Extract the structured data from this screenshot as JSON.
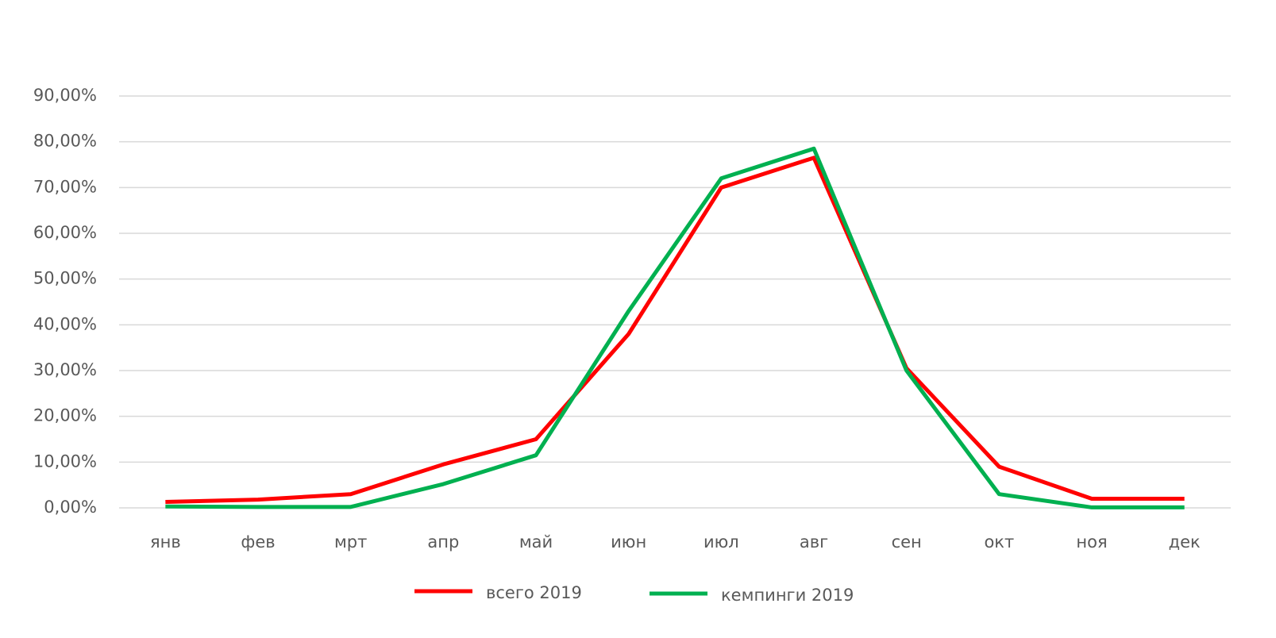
{
  "chart_data": {
    "type": "line",
    "categories": [
      "янв",
      "фев",
      "мрт",
      "апр",
      "май",
      "июн",
      "июл",
      "авг",
      "сен",
      "окт",
      "ноя",
      "дек"
    ],
    "series": [
      {
        "name": "всего 2019",
        "color": "#ff0000",
        "values": [
          1.3,
          1.8,
          3,
          9.5,
          15,
          38,
          70,
          76.5,
          30.5,
          9,
          2,
          2
        ]
      },
      {
        "name": "кемпинги 2019",
        "color": "#00b050",
        "values": [
          0.3,
          0.2,
          0.2,
          5.2,
          11.5,
          43,
          72,
          78.5,
          30,
          3,
          0.1,
          0.1
        ]
      }
    ],
    "ylim": [
      0,
      90
    ],
    "yticks": [
      {
        "value": 0,
        "label": "0,00%"
      },
      {
        "value": 10,
        "label": "10,00%"
      },
      {
        "value": 20,
        "label": "20,00%"
      },
      {
        "value": 30,
        "label": "30,00%"
      },
      {
        "value": 40,
        "label": "40,00%"
      },
      {
        "value": 50,
        "label": "50,00%"
      },
      {
        "value": 60,
        "label": "60,00%"
      },
      {
        "value": 70,
        "label": "70,00%"
      },
      {
        "value": 80,
        "label": "80,00%"
      },
      {
        "value": 90,
        "label": "90,00%"
      }
    ],
    "grid": true,
    "legend": "bottom"
  }
}
